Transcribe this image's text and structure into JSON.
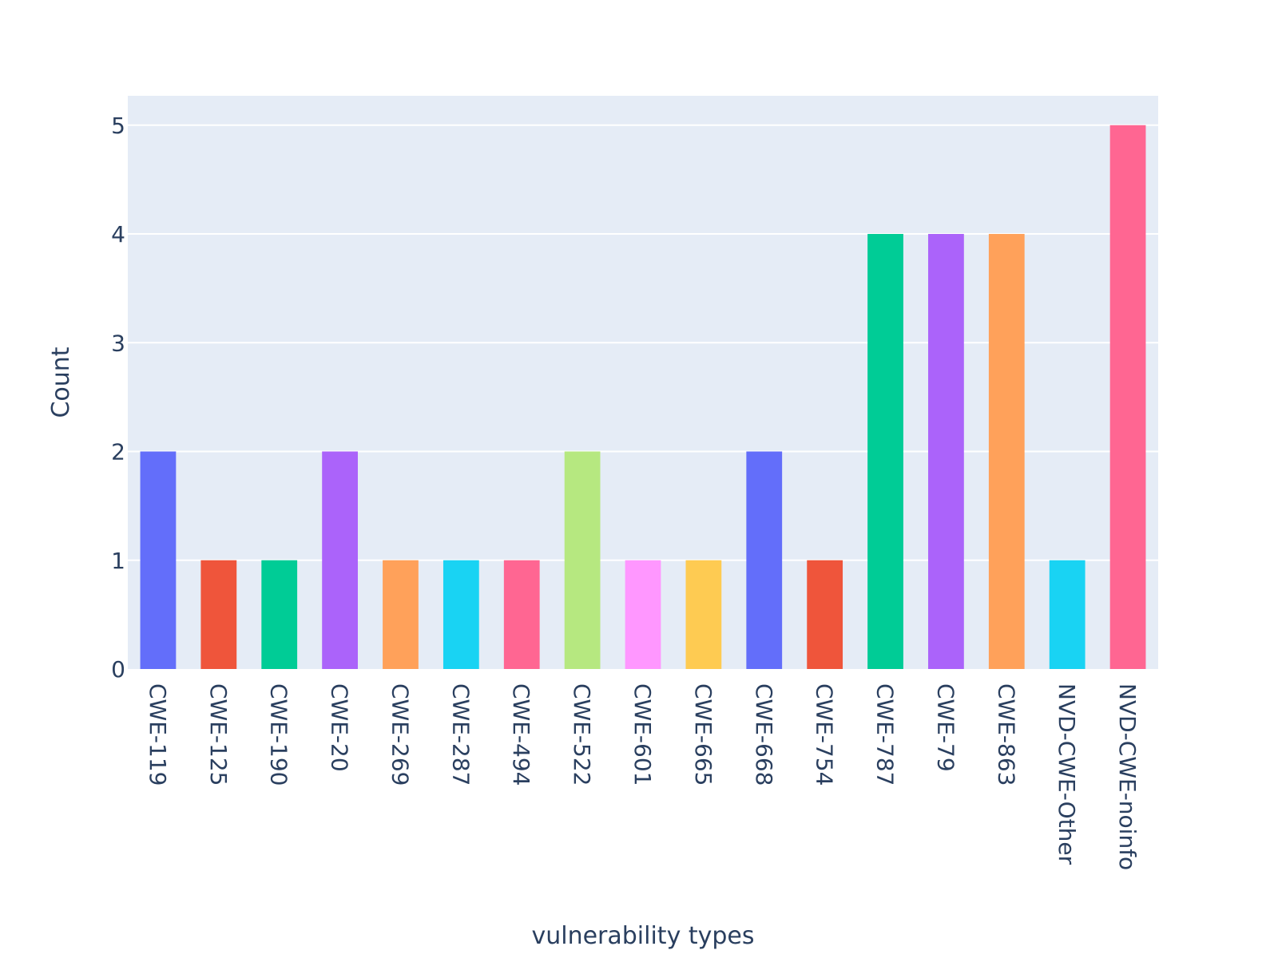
{
  "chart_data": {
    "type": "bar",
    "title": "",
    "xlabel": "vulnerability types",
    "ylabel": "Count",
    "ylim": [
      0,
      5.27
    ],
    "yticks": [
      0,
      1,
      2,
      3,
      4,
      5
    ],
    "grid": true,
    "legend": "none",
    "background": "#e5ecf6",
    "categories": [
      "CWE-119",
      "CWE-125",
      "CWE-190",
      "CWE-20",
      "CWE-269",
      "CWE-287",
      "CWE-494",
      "CWE-522",
      "CWE-601",
      "CWE-665",
      "CWE-668",
      "CWE-754",
      "CWE-787",
      "CWE-79",
      "CWE-863",
      "NVD-CWE-Other",
      "NVD-CWE-noinfo"
    ],
    "values": [
      2,
      1,
      1,
      2,
      1,
      1,
      1,
      2,
      1,
      1,
      2,
      1,
      4,
      4,
      4,
      1,
      5
    ],
    "colors": [
      "#636efa",
      "#ef553b",
      "#00cc96",
      "#ab63fa",
      "#ffa15a",
      "#19d3f3",
      "#ff6692",
      "#b6e880",
      "#ff97ff",
      "#fecb52",
      "#636efa",
      "#ef553b",
      "#00cc96",
      "#ab63fa",
      "#ffa15a",
      "#19d3f3",
      "#ff6692"
    ]
  }
}
